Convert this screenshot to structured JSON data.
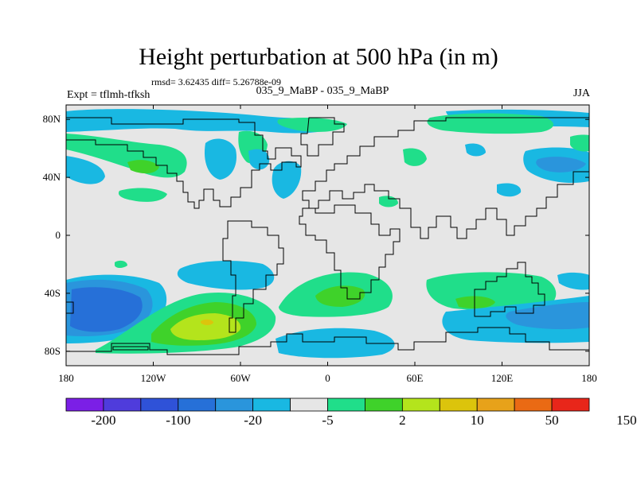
{
  "title": "Height perturbation at 500 hPa (in m)",
  "stats": "rmsd= 3.62435 diff= 5.26788e-09",
  "experiment": "Expt = tflmh-tfksh",
  "case": "035_9_MaBP - 035_9_MaBP",
  "season": "JJA",
  "lat_ticks": [
    "80N",
    "40N",
    "0",
    "40S",
    "80S"
  ],
  "lat_values": [
    80,
    40,
    0,
    -40,
    -80
  ],
  "lon_ticks": [
    "180",
    "120W",
    "60W",
    "0",
    "60E",
    "120E",
    "180"
  ],
  "lon_values": [
    -180,
    -120,
    -60,
    0,
    60,
    120,
    180
  ],
  "colorbar": {
    "labels": [
      "-200",
      "-100",
      "-20",
      "-5",
      "2",
      "10",
      "50",
      "150"
    ],
    "colors": [
      "#7b1fe6",
      "#4f3cdc",
      "#2f52d8",
      "#2670d8",
      "#2a95dc",
      "#19b8e2",
      "#e6e6e6",
      "#20de8a",
      "#3fd22a",
      "#b4e41c",
      "#dcc40c",
      "#e7a21a",
      "#ea6a14",
      "#e8261a"
    ]
  },
  "colors": {
    "land_outline": "#000000",
    "background": "#e6e6e6"
  }
}
